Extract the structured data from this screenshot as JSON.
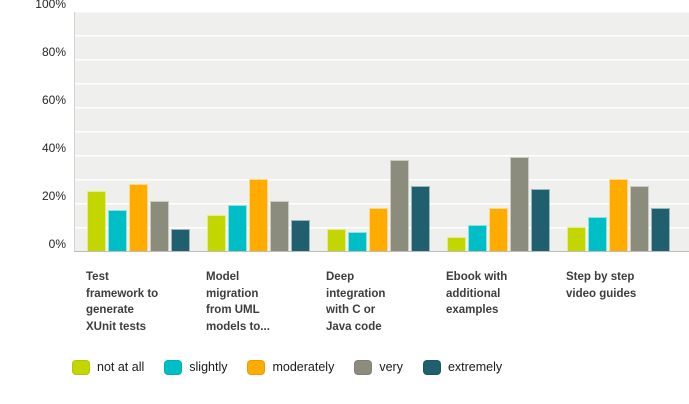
{
  "chart_data": {
    "type": "bar",
    "title": "",
    "xlabel": "",
    "ylabel": "",
    "categories": [
      "Test framework to generate XUnit tests",
      "Model migration from UML models to...",
      "Deep integration with C or Java code",
      "Ebook with additional examples",
      "Step by step video guides"
    ],
    "categories_lines": [
      [
        "Test",
        "framework to",
        "generate",
        "XUnit tests"
      ],
      [
        "Model",
        "migration",
        "from UML",
        "models to..."
      ],
      [
        "Deep",
        "integration",
        "with C or",
        "Java code"
      ],
      [
        "Ebook with",
        "additional",
        "examples"
      ],
      [
        "Step by step",
        "video guides"
      ]
    ],
    "series": [
      {
        "name": "not at all",
        "color": "#c3d600",
        "values": [
          25,
          15,
          9,
          6,
          10
        ]
      },
      {
        "name": "slightly",
        "color": "#00bec6",
        "values": [
          17,
          19,
          8,
          11,
          14
        ]
      },
      {
        "name": "moderately",
        "color": "#ffab00",
        "values": [
          28,
          30,
          18,
          18,
          30
        ]
      },
      {
        "name": "very",
        "color": "#8b8c7c",
        "values": [
          21,
          21,
          38,
          39,
          27
        ]
      },
      {
        "name": "extremely",
        "color": "#1f5f6e",
        "values": [
          9,
          13,
          27,
          26,
          18
        ]
      }
    ],
    "y_axis": {
      "tick_labels": [
        "100%",
        "80%",
        "60%",
        "40%",
        "20%",
        "0%"
      ],
      "tick_values": [
        100,
        80,
        60,
        40,
        20,
        0
      ],
      "min": 0,
      "max": 100,
      "gridline_step_percent": 10,
      "grid": true
    },
    "legend_position": "bottom",
    "plot_background": "#efefee",
    "gridline_color": "#ffffff"
  }
}
